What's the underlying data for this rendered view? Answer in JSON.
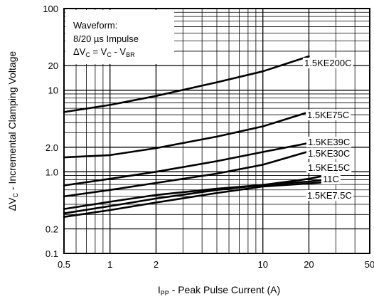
{
  "chart_data": {
    "type": "line",
    "xlabel": {
      "main": "I",
      "sub": "PP",
      "rest": " - Peak Pulse Current (A)"
    },
    "ylabel": {
      "pre": "ΔV",
      "sub": "C",
      "rest": " - Incremental Clamping Voltage"
    },
    "x_scale": "log",
    "y_scale": "log",
    "xlim": [
      0.5,
      50
    ],
    "ylim": [
      0.1,
      100
    ],
    "x_ticks": [
      {
        "value": 0.5,
        "label": "0.5"
      },
      {
        "value": 1,
        "label": "1"
      },
      {
        "value": 2,
        "label": "2"
      },
      {
        "value": 10,
        "label": "10"
      },
      {
        "value": 20,
        "label": "20"
      },
      {
        "value": 50,
        "label": "50"
      }
    ],
    "y_ticks": [
      {
        "value": 0.1,
        "label": "0.1"
      },
      {
        "value": 0.2,
        "label": "0.2"
      },
      {
        "value": 1,
        "label": "1.0"
      },
      {
        "value": 2,
        "label": "2.0"
      },
      {
        "value": 10,
        "label": "10"
      },
      {
        "value": 20,
        "label": "20"
      },
      {
        "value": 100,
        "label": "100"
      }
    ],
    "grid": true,
    "annotation": {
      "line1": "Waveform:",
      "line2": "8/20 µs Impulse",
      "line3": {
        "a": "ΔV",
        "a_sub": "C",
        "b": " = V",
        "b_sub": "C",
        "c": " - V",
        "c_sub": "BR"
      }
    },
    "series": [
      {
        "name": "1.5KE200C",
        "x": [
          0.5,
          1,
          2,
          5,
          10,
          20
        ],
        "y": [
          5.4,
          6.6,
          8.5,
          12.5,
          17.0,
          26.0
        ]
      },
      {
        "name": "1.5KE75C",
        "x": [
          0.5,
          1,
          2,
          5,
          10,
          20
        ],
        "y": [
          1.5,
          1.6,
          1.95,
          2.7,
          3.6,
          5.4
        ]
      },
      {
        "name": "1.5KE39C",
        "x": [
          0.5,
          1,
          2,
          5,
          10,
          20
        ],
        "y": [
          0.68,
          0.82,
          1.0,
          1.35,
          1.75,
          2.25
        ]
      },
      {
        "name": "1.5KE30C",
        "x": [
          0.5,
          1,
          2,
          5,
          10,
          20
        ],
        "y": [
          0.5,
          0.6,
          0.73,
          0.95,
          1.22,
          1.78
        ]
      },
      {
        "name": "1.5KE15C",
        "x": [
          0.5,
          1,
          2,
          5,
          10,
          20,
          24
        ],
        "y": [
          0.31,
          0.38,
          0.47,
          0.6,
          0.69,
          0.82,
          0.88
        ]
      },
      {
        "name": "11C",
        "x": [
          0.5,
          1,
          2,
          5,
          10,
          20,
          24
        ],
        "y": [
          0.35,
          0.43,
          0.52,
          0.62,
          0.69,
          0.76,
          0.79
        ]
      },
      {
        "name": "1.5KE7.5C",
        "x": [
          0.5,
          1,
          2,
          5,
          10,
          20,
          24
        ],
        "y": [
          0.28,
          0.34,
          0.42,
          0.55,
          0.66,
          0.72,
          0.74
        ]
      }
    ]
  }
}
